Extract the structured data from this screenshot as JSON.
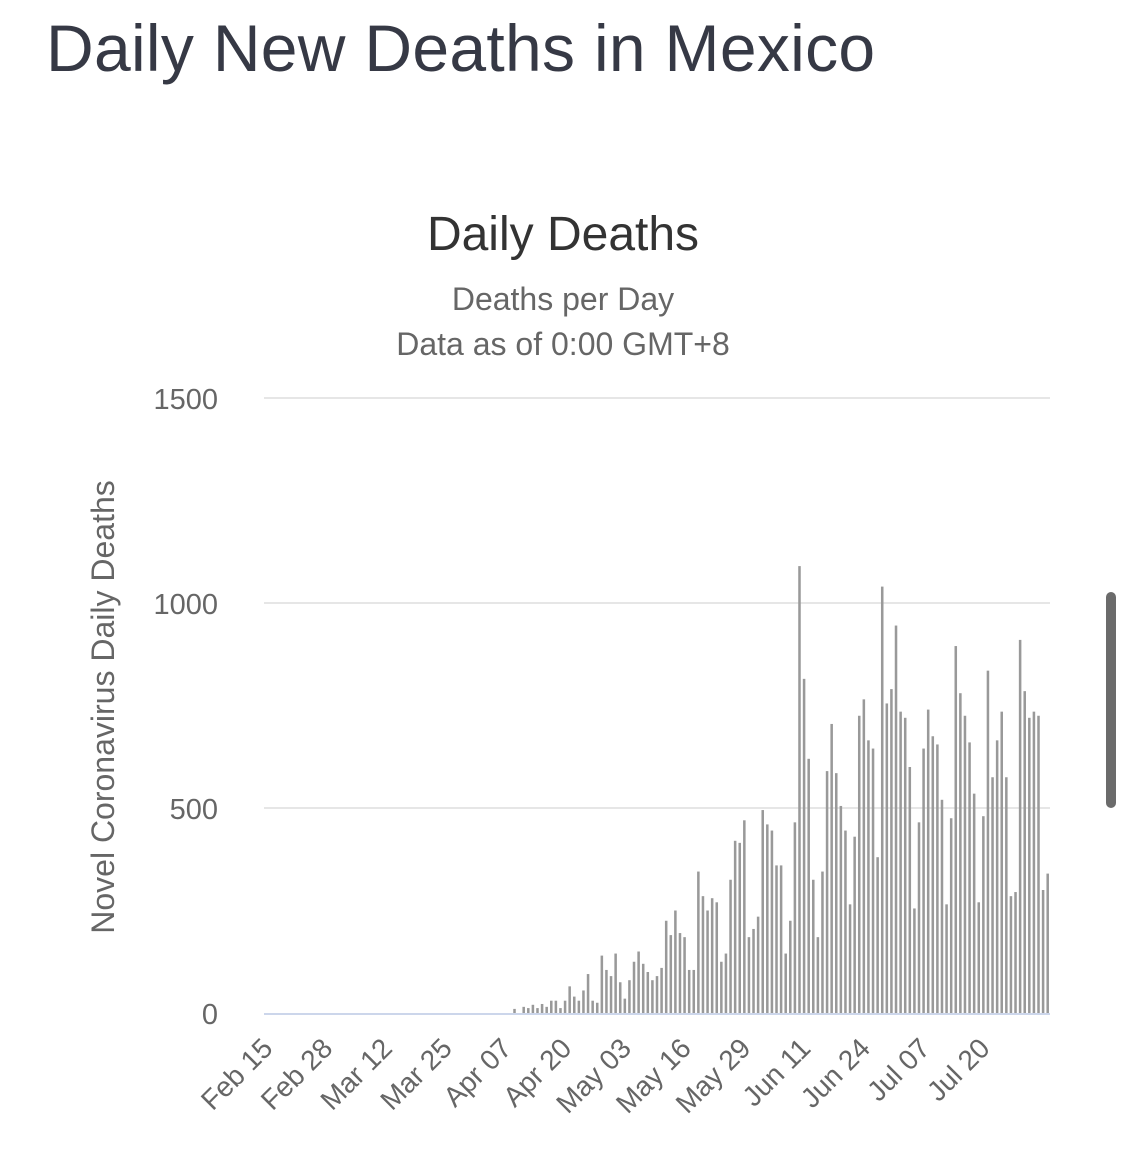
{
  "page": {
    "title": "Daily New Deaths in Mexico"
  },
  "colors": {
    "bar": "#999999",
    "grid": "#e6e6e6",
    "baseline": "#ccd6eb",
    "title_text": "#363945"
  },
  "chart_data": {
    "type": "bar",
    "title": "Daily Deaths",
    "subtitle": "Deaths per Day",
    "subtitle2": "Data as of 0:00 GMT+8",
    "ylabel": "Novel Coronavirus Daily Deaths",
    "xlabel": "",
    "ylim": [
      0,
      1500
    ],
    "yticks": [
      0,
      500,
      1000,
      1500
    ],
    "xtick_labels": [
      "Feb 15",
      "Feb 28",
      "Mar 12",
      "Mar 25",
      "Apr 07",
      "Apr 20",
      "May 03",
      "May 16",
      "May 29",
      "Jun 11",
      "Jun 24",
      "Jul 07",
      "Jul 20"
    ],
    "grid": true,
    "legend": false,
    "start_date": "Feb 15",
    "series": [
      {
        "values": [
          0,
          0,
          0,
          0,
          0,
          0,
          0,
          0,
          0,
          0,
          0,
          0,
          0,
          0,
          0,
          0,
          0,
          0,
          0,
          0,
          0,
          0,
          0,
          0,
          0,
          0,
          0,
          0,
          0,
          0,
          0,
          0,
          0,
          0,
          0,
          0,
          0,
          0,
          0,
          0,
          0,
          0,
          0,
          0,
          0,
          0,
          0,
          0,
          0,
          0,
          0,
          0,
          0,
          0,
          10,
          0,
          15,
          12,
          20,
          12,
          22,
          15,
          30,
          30,
          12,
          30,
          65,
          40,
          30,
          55,
          95,
          30,
          25,
          140,
          105,
          90,
          145,
          75,
          35,
          80,
          125,
          150,
          120,
          100,
          80,
          90,
          110,
          225,
          190,
          250,
          195,
          185,
          105,
          105,
          345,
          285,
          250,
          280,
          270,
          125,
          145,
          325,
          420,
          415,
          470,
          185,
          205,
          235,
          495,
          460,
          445,
          360,
          360,
          145,
          225,
          465,
          1090,
          815,
          620,
          325,
          185,
          345,
          590,
          705,
          585,
          505,
          445,
          265,
          430,
          725,
          765,
          665,
          645,
          380,
          1040,
          755,
          790,
          945,
          735,
          720,
          600,
          255,
          465,
          645,
          740,
          675,
          655,
          520,
          265,
          475,
          895,
          780,
          725,
          660,
          535,
          270,
          480,
          835,
          575,
          665,
          735,
          575,
          285,
          295,
          910,
          785,
          720,
          735,
          725,
          300,
          340
        ]
      }
    ]
  }
}
